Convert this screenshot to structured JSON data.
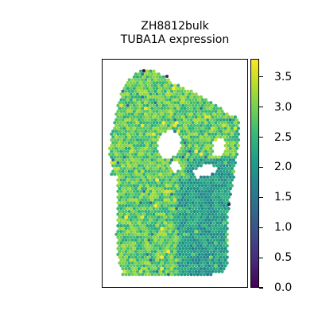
{
  "chart_data": {
    "type": "scatter",
    "title": "ZH8812bulk",
    "subtitle": "TUBA1A expression",
    "xlabel": "",
    "ylabel": "",
    "colormap": "viridis",
    "colorbar": {
      "range": [
        0.0,
        3.8
      ],
      "ticks": [
        0.0,
        0.5,
        1.0,
        1.5,
        2.0,
        2.5,
        3.0,
        3.5
      ],
      "tick_labels": [
        "0.0",
        "0.5",
        "1.0",
        "1.5",
        "2.0",
        "2.5",
        "3.0",
        "3.5"
      ]
    },
    "grid": false,
    "legend": "none",
    "value_summary": {
      "typical": 2.8,
      "min_observed": 0.0,
      "max_observed": 3.8,
      "lower_right_region_typical": 2.1
    }
  }
}
